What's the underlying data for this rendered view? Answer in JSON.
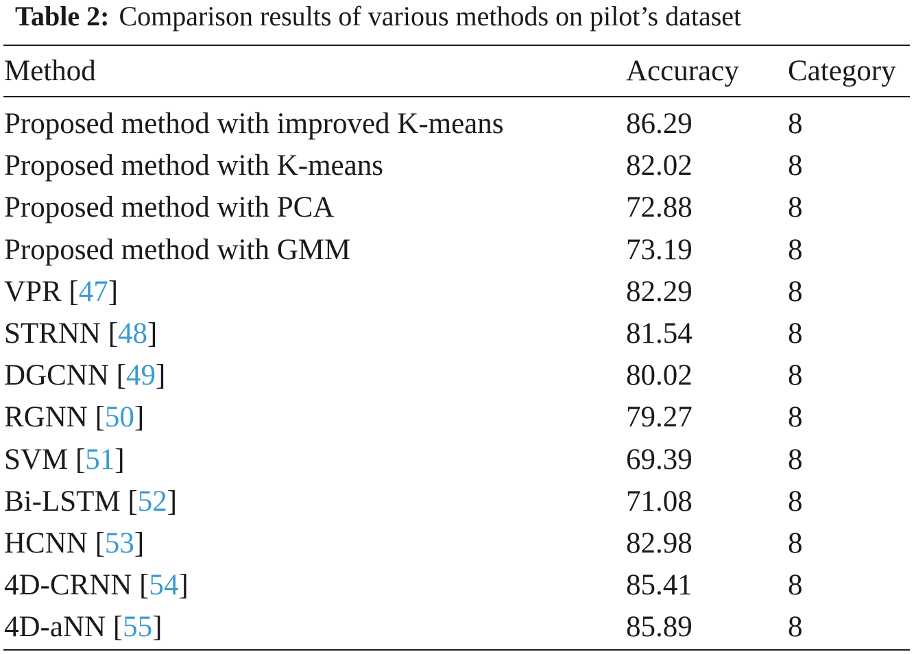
{
  "caption": {
    "label": "Table 2:",
    "text": "Comparison results of various methods on pilot’s dataset"
  },
  "colors": {
    "text": "#1a1a1a",
    "citation_link": "#3a9bd0"
  },
  "table": {
    "headers": [
      "Method",
      "Accuracy",
      "Category"
    ],
    "rows": [
      {
        "method": "Proposed method with improved K-means",
        "ref": "",
        "accuracy": "86.29",
        "category": "8"
      },
      {
        "method": "Proposed method with K-means",
        "ref": "",
        "accuracy": "82.02",
        "category": "8"
      },
      {
        "method": "Proposed method with PCA",
        "ref": "",
        "accuracy": "72.88",
        "category": "8"
      },
      {
        "method": "Proposed method with GMM",
        "ref": "",
        "accuracy": "73.19",
        "category": "8"
      },
      {
        "method": "VPR",
        "ref": "47",
        "accuracy": "82.29",
        "category": "8"
      },
      {
        "method": "STRNN",
        "ref": "48",
        "accuracy": "81.54",
        "category": "8"
      },
      {
        "method": "DGCNN",
        "ref": "49",
        "accuracy": "80.02",
        "category": "8"
      },
      {
        "method": "RGNN",
        "ref": "50",
        "accuracy": "79.27",
        "category": "8"
      },
      {
        "method": "SVM",
        "ref": "51",
        "accuracy": "69.39",
        "category": "8"
      },
      {
        "method": "Bi-LSTM",
        "ref": "52",
        "accuracy": "71.08",
        "category": "8"
      },
      {
        "method": "HCNN",
        "ref": "53",
        "accuracy": "82.98",
        "category": "8"
      },
      {
        "method": "4D-CRNN",
        "ref": "54",
        "accuracy": "85.41",
        "category": "8"
      },
      {
        "method": "4D-aNN",
        "ref": "55",
        "accuracy": "85.89",
        "category": "8"
      }
    ]
  }
}
